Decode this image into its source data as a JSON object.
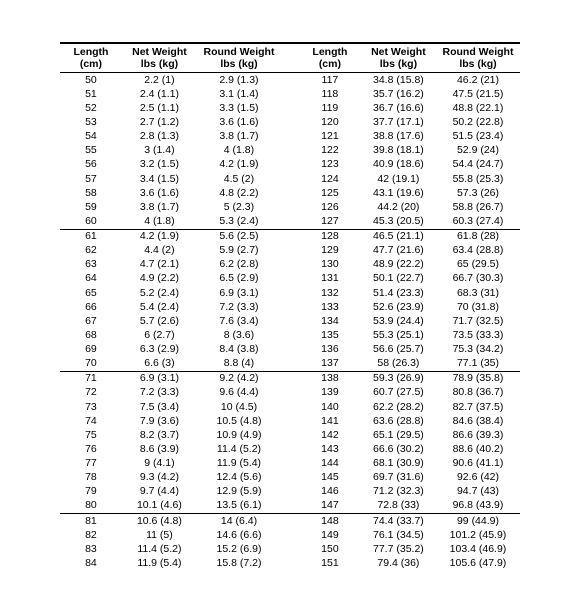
{
  "headers": {
    "length": "Length (cm)",
    "net": "Net Weight lbs (kg)",
    "round": "Round Weight lbs (kg)"
  },
  "left": [
    {
      "l": "50",
      "n": "2.2 (1)",
      "r": "2.9 (1.3)"
    },
    {
      "l": "51",
      "n": "2.4 (1.1)",
      "r": "3.1 (1.4)"
    },
    {
      "l": "52",
      "n": "2.5 (1.1)",
      "r": "3.3 (1.5)"
    },
    {
      "l": "53",
      "n": "2.7 (1.2)",
      "r": "3.6 (1.6)"
    },
    {
      "l": "54",
      "n": "2.8 (1.3)",
      "r": "3.8 (1.7)"
    },
    {
      "l": "55",
      "n": "3 (1.4)",
      "r": "4 (1.8)"
    },
    {
      "l": "56",
      "n": "3.2 (1.5)",
      "r": "4.2 (1.9)"
    },
    {
      "l": "57",
      "n": "3.4 (1.5)",
      "r": "4.5 (2)"
    },
    {
      "l": "58",
      "n": "3.6 (1.6)",
      "r": "4.8 (2.2)"
    },
    {
      "l": "59",
      "n": "3.8 (1.7)",
      "r": "5 (2.3)"
    },
    {
      "l": "60",
      "n": "4 (1.8)",
      "r": "5.3 (2.4)",
      "sep": true
    },
    {
      "l": "61",
      "n": "4.2 (1.9)",
      "r": "5.6 (2.5)"
    },
    {
      "l": "62",
      "n": "4.4 (2)",
      "r": "5.9 (2.7)"
    },
    {
      "l": "63",
      "n": "4.7 (2.1)",
      "r": "6.2 (2.8)"
    },
    {
      "l": "64",
      "n": "4.9 (2.2)",
      "r": "6.5 (2.9)"
    },
    {
      "l": "65",
      "n": "5.2 (2.4)",
      "r": "6.9 (3.1)"
    },
    {
      "l": "66",
      "n": "5.4 (2.4)",
      "r": "7.2 (3.3)"
    },
    {
      "l": "67",
      "n": "5.7 (2.6)",
      "r": "7.6 (3.4)"
    },
    {
      "l": "68",
      "n": "6 (2.7)",
      "r": "8 (3.6)"
    },
    {
      "l": "69",
      "n": "6.3 (2.9)",
      "r": "8.4 (3.8)"
    },
    {
      "l": "70",
      "n": "6.6 (3)",
      "r": "8.8 (4)",
      "sep": true
    },
    {
      "l": "71",
      "n": "6.9 (3.1)",
      "r": "9.2 (4.2)"
    },
    {
      "l": "72",
      "n": "7.2 (3.3)",
      "r": "9.6 (4.4)"
    },
    {
      "l": "73",
      "n": "7.5 (3.4)",
      "r": "10 (4.5)"
    },
    {
      "l": "74",
      "n": "7.9 (3.6)",
      "r": "10.5 (4.8)"
    },
    {
      "l": "75",
      "n": "8.2 (3.7)",
      "r": "10.9 (4.9)"
    },
    {
      "l": "76",
      "n": "8.6 (3.9)",
      "r": "11.4 (5.2)"
    },
    {
      "l": "77",
      "n": "9 (4.1)",
      "r": "11.9 (5.4)"
    },
    {
      "l": "78",
      "n": "9.3 (4.2)",
      "r": "12.4 (5.6)"
    },
    {
      "l": "79",
      "n": "9.7 (4.4)",
      "r": "12.9 (5.9)"
    },
    {
      "l": "80",
      "n": "10.1 (4.6)",
      "r": "13.5 (6.1)",
      "sep": true
    },
    {
      "l": "81",
      "n": "10.6 (4.8)",
      "r": "14 (6.4)"
    },
    {
      "l": "82",
      "n": "11 (5)",
      "r": "14.6 (6.6)"
    },
    {
      "l": "83",
      "n": "11.4 (5.2)",
      "r": "15.2 (6.9)"
    },
    {
      "l": "84",
      "n": "11.9 (5.4)",
      "r": "15.8 (7.2)"
    }
  ],
  "right": [
    {
      "l": "117",
      "n": "34.8 (15.8)",
      "r": "46.2 (21)"
    },
    {
      "l": "118",
      "n": "35.7 (16.2)",
      "r": "47.5 (21.5)"
    },
    {
      "l": "119",
      "n": "36.7 (16.6)",
      "r": "48.8 (22.1)"
    },
    {
      "l": "120",
      "n": "37.7 (17.1)",
      "r": "50.2 (22.8)"
    },
    {
      "l": "121",
      "n": "38.8 (17.6)",
      "r": "51.5 (23.4)"
    },
    {
      "l": "122",
      "n": "39.8 (18.1)",
      "r": "52.9 (24)"
    },
    {
      "l": "123",
      "n": "40.9 (18.6)",
      "r": "54.4 (24.7)"
    },
    {
      "l": "124",
      "n": "42 (19.1)",
      "r": "55.8 (25.3)"
    },
    {
      "l": "125",
      "n": "43.1 (19.6)",
      "r": "57.3 (26)"
    },
    {
      "l": "126",
      "n": "44.2 (20)",
      "r": "58.8 (26.7)"
    },
    {
      "l": "127",
      "n": "45.3 (20.5)",
      "r": "60.3 (27.4)",
      "sep": true
    },
    {
      "l": "128",
      "n": "46.5 (21.1)",
      "r": "61.8 (28)"
    },
    {
      "l": "129",
      "n": "47.7 (21.6)",
      "r": "63.4 (28.8)"
    },
    {
      "l": "130",
      "n": "48.9 (22.2)",
      "r": "65 (29.5)"
    },
    {
      "l": "131",
      "n": "50.1 (22.7)",
      "r": "66.7 (30.3)"
    },
    {
      "l": "132",
      "n": "51.4 (23.3)",
      "r": "68.3 (31)"
    },
    {
      "l": "133",
      "n": "52.6 (23.9)",
      "r": "70 (31.8)"
    },
    {
      "l": "134",
      "n": "53.9 (24.4)",
      "r": "71.7 (32.5)"
    },
    {
      "l": "135",
      "n": "55.3 (25.1)",
      "r": "73.5 (33.3)"
    },
    {
      "l": "136",
      "n": "56.6 (25.7)",
      "r": "75.3 (34.2)"
    },
    {
      "l": "137",
      "n": "58 (26.3)",
      "r": "77.1 (35)",
      "sep": true
    },
    {
      "l": "138",
      "n": "59.3 (26.9)",
      "r": "78.9 (35.8)"
    },
    {
      "l": "139",
      "n": "60.7 (27.5)",
      "r": "80.8 (36.7)"
    },
    {
      "l": "140",
      "n": "62.2 (28.2)",
      "r": "82.7 (37.5)"
    },
    {
      "l": "141",
      "n": "63.6 (28.8)",
      "r": "84.6 (38.4)"
    },
    {
      "l": "142",
      "n": "65.1 (29.5)",
      "r": "86.6 (39.3)"
    },
    {
      "l": "143",
      "n": "66.6 (30.2)",
      "r": "88.6 (40.2)"
    },
    {
      "l": "144",
      "n": "68.1 (30.9)",
      "r": "90.6 (41.1)"
    },
    {
      "l": "145",
      "n": "69.7 (31.6)",
      "r": "92.6 (42)"
    },
    {
      "l": "146",
      "n": "71.2 (32.3)",
      "r": "94.7 (43)"
    },
    {
      "l": "147",
      "n": "72.8 (33)",
      "r": "96.8 (43.9)",
      "sep": true
    },
    {
      "l": "148",
      "n": "74.4 (33.7)",
      "r": "99 (44.9)"
    },
    {
      "l": "149",
      "n": "76.1 (34.5)",
      "r": "101.2 (45.9)"
    },
    {
      "l": "150",
      "n": "77.7 (35.2)",
      "r": "103.4 (46.9)"
    },
    {
      "l": "151",
      "n": "79.4 (36)",
      "r": "105.6 (47.9)"
    }
  ]
}
